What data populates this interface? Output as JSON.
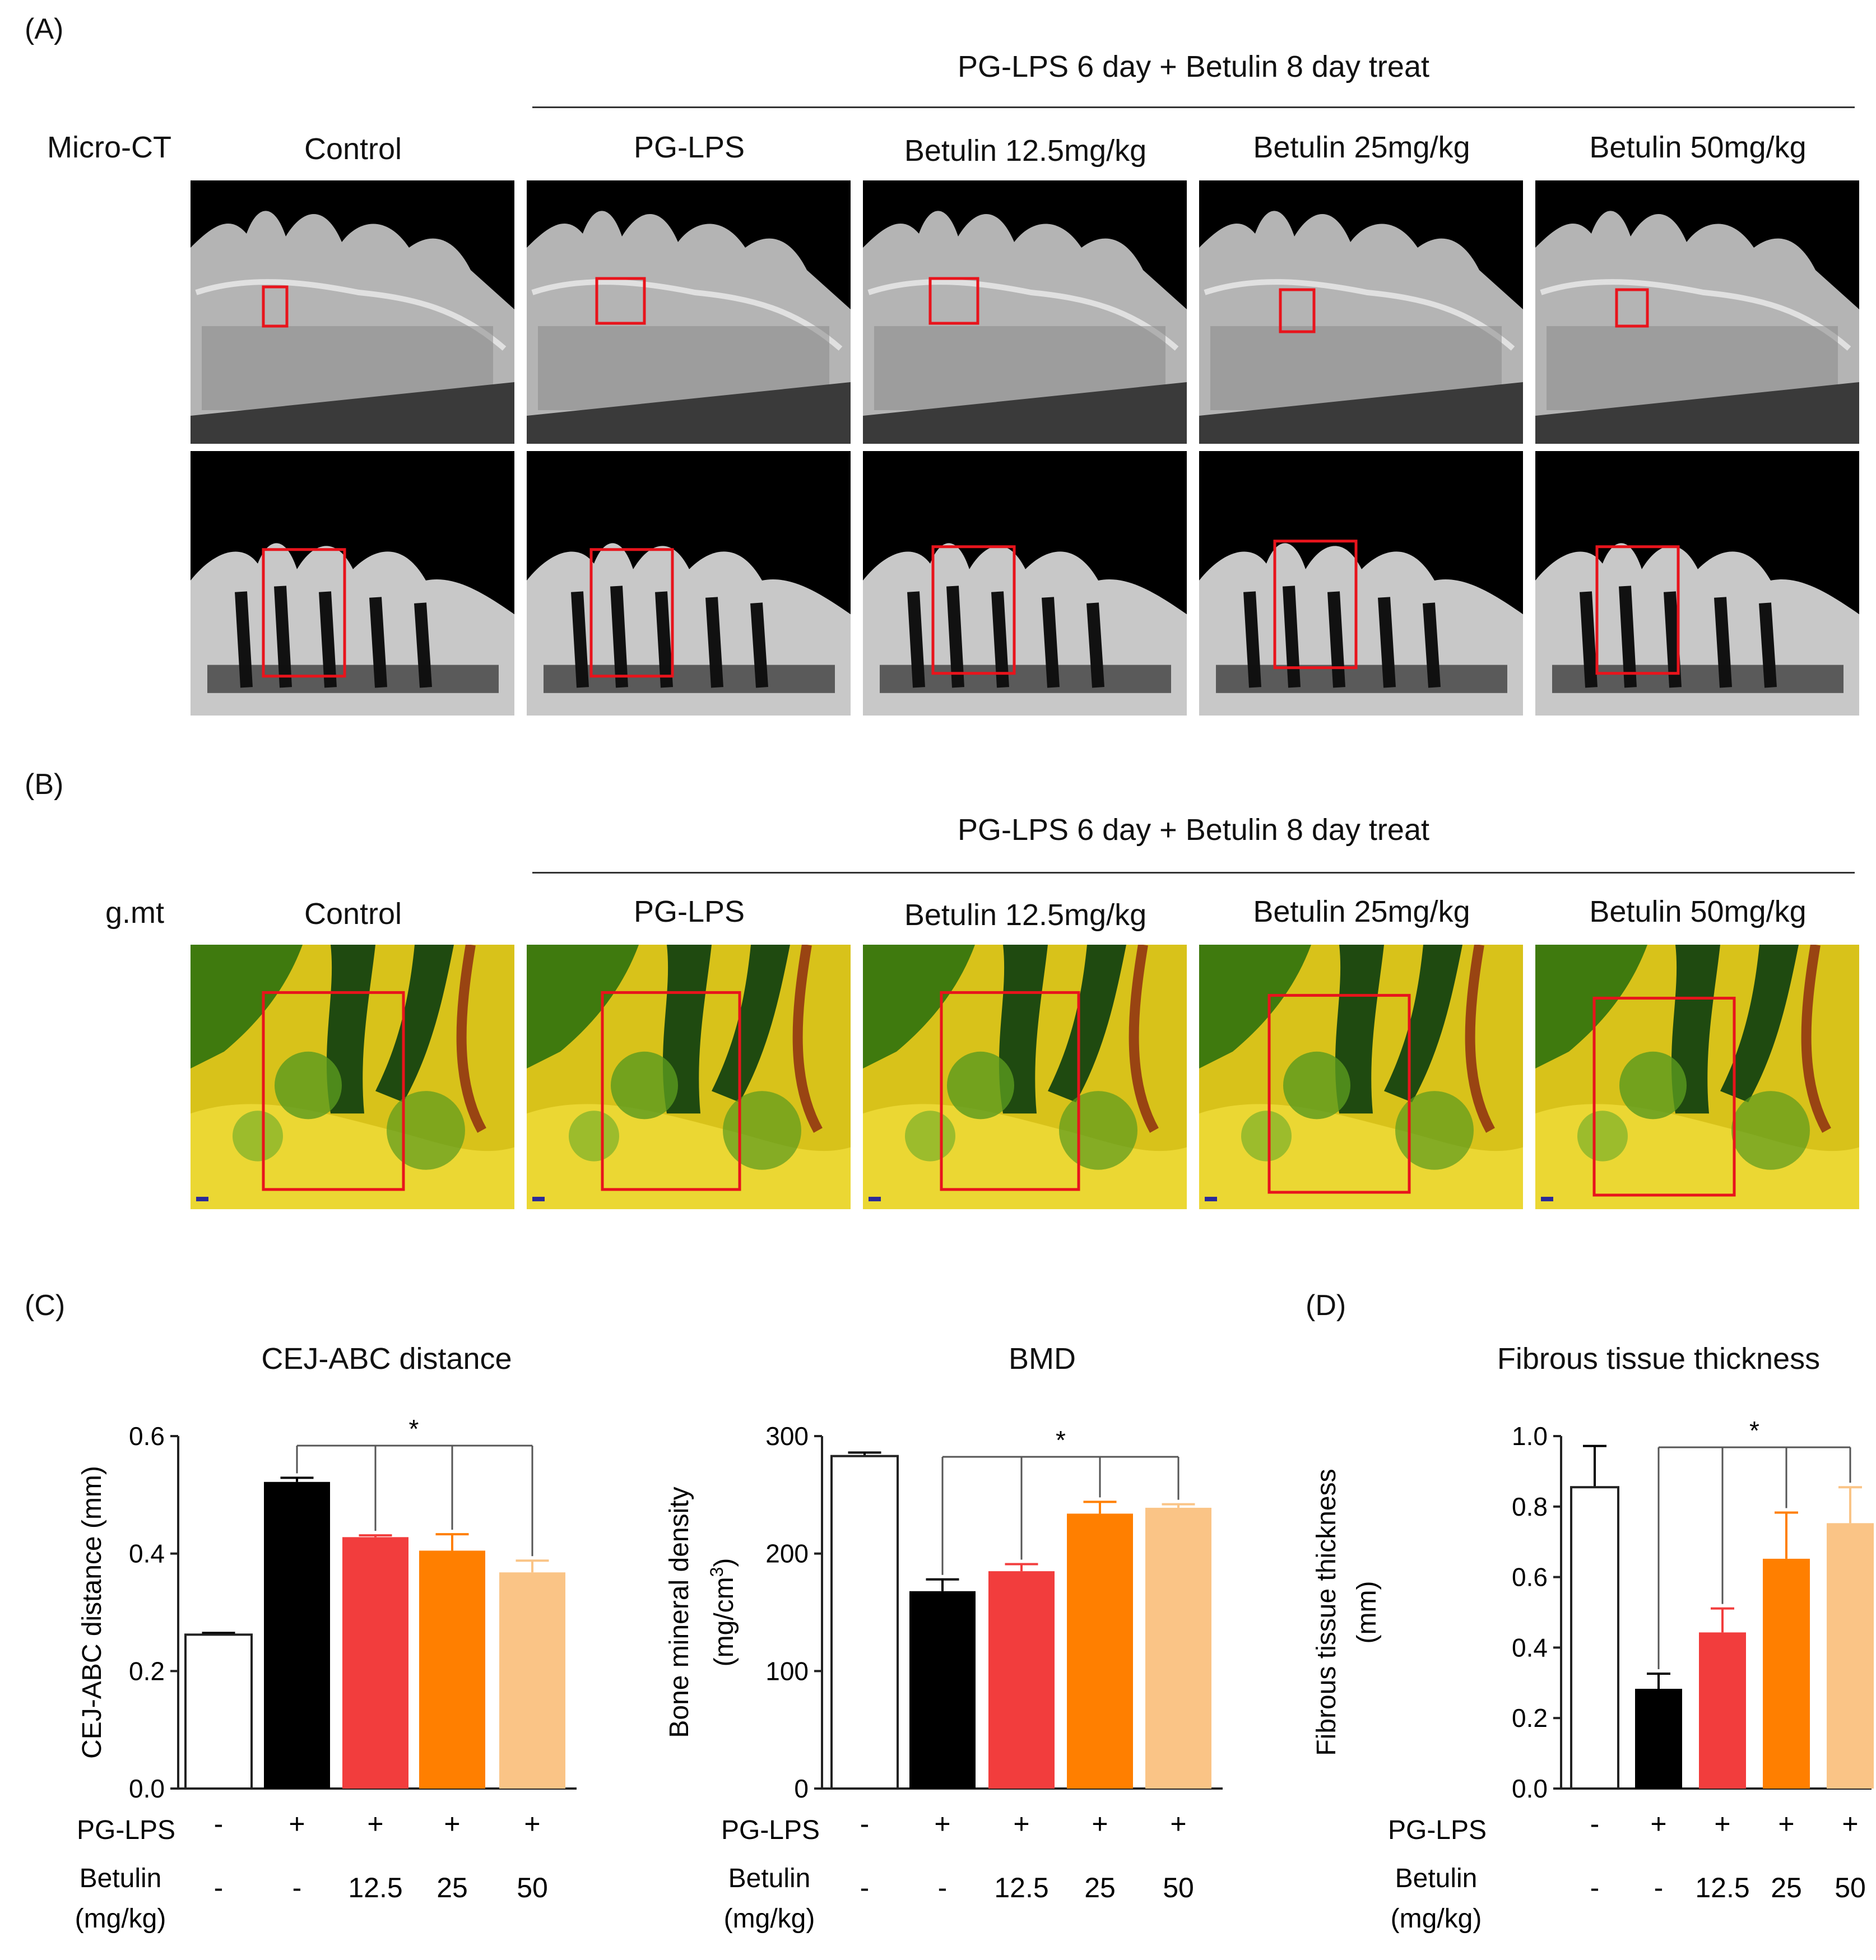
{
  "panel_labels": {
    "A": "(A)",
    "B": "(B)",
    "C": "(C)",
    "D": "(D)"
  },
  "panelA": {
    "treatment_header": "PG-LPS 6 day + Betulin  8 day treat",
    "row_label": "Micro-CT",
    "columns": [
      "Control",
      "PG-LPS",
      "Betulin  12.5mg/kg",
      "Betulin  25mg/kg",
      "Betulin  50mg/kg"
    ]
  },
  "panelB": {
    "treatment_header": "PG-LPS 6 day + Betulin  8 day treat",
    "row_label": "g.mt",
    "columns": [
      "Control",
      "PG-LPS",
      "Betulin  12.5mg/kg",
      "Betulin  25mg/kg",
      "Betulin  50mg/kg"
    ]
  },
  "colors": {
    "control": "#ffffff",
    "pglps": "#000000",
    "b12": "#f23d3d",
    "b25": "#ff7f00",
    "b50": "#fac486",
    "roi": "#e8141c"
  },
  "chart_data": [
    {
      "type": "bar",
      "title": "CEJ-ABC distance",
      "ylabel": "CEJ-ABC distance (mm)",
      "ylim": [
        0,
        0.6
      ],
      "yticks": [
        "0.0",
        "0.2",
        "0.4",
        "0.6"
      ],
      "ytick_values": [
        0,
        0.2,
        0.4,
        0.6
      ],
      "values": [
        0.262,
        0.522,
        0.428,
        0.405,
        0.368
      ],
      "errors": [
        0.003,
        0.007,
        0.003,
        0.028,
        0.02
      ],
      "significance": "*",
      "row1_label": "PG-LPS",
      "row1": [
        "-",
        "+",
        "+",
        "+",
        "+"
      ],
      "row2_label_line1": "Betulin",
      "row2_label_line2": "(mg/kg)",
      "row2": [
        "-",
        "-",
        "12.5",
        "25",
        "50"
      ]
    },
    {
      "type": "bar",
      "title": "BMD",
      "ylabel": "Bone mineral density",
      "ylabel2": "(mg/cm",
      "ylabel2_sup": "3",
      "ylabel2_end": ")",
      "ylim": [
        0,
        300
      ],
      "yticks": [
        "0",
        "100",
        "200",
        "300"
      ],
      "ytick_values": [
        0,
        100,
        200,
        300
      ],
      "values": [
        283,
        168,
        185,
        234,
        239
      ],
      "errors": [
        3,
        10,
        6,
        10,
        3
      ],
      "significance": "*",
      "row1_label": "PG-LPS",
      "row1": [
        "-",
        "+",
        "+",
        "+",
        "+"
      ],
      "row2_label_line1": "Betulin",
      "row2_label_line2": "(mg/kg)",
      "row2": [
        "-",
        "-",
        "12.5",
        "25",
        "50"
      ]
    },
    {
      "type": "bar",
      "title": "Fibrous tissue thickness",
      "ylabel": "Fibrous tissue thickness",
      "ylabel2": "(mm)",
      "ylim": [
        0,
        1.0
      ],
      "yticks": [
        "0.0",
        "0.2",
        "0.4",
        "0.6",
        "0.8",
        "1.0"
      ],
      "ytick_values": [
        0,
        0.2,
        0.4,
        0.6,
        0.8,
        1.0
      ],
      "values": [
        0.855,
        0.283,
        0.443,
        0.652,
        0.753
      ],
      "errors": [
        0.117,
        0.043,
        0.068,
        0.131,
        0.102
      ],
      "significance": "*",
      "row1_label": "PG-LPS",
      "row1": [
        "-",
        "+",
        "+",
        "+",
        "+"
      ],
      "row2_label_line1": "Betulin",
      "row2_label_line2": "(mg/kg)",
      "row2": [
        "-",
        "-",
        "12.5",
        "25",
        "50"
      ]
    }
  ]
}
